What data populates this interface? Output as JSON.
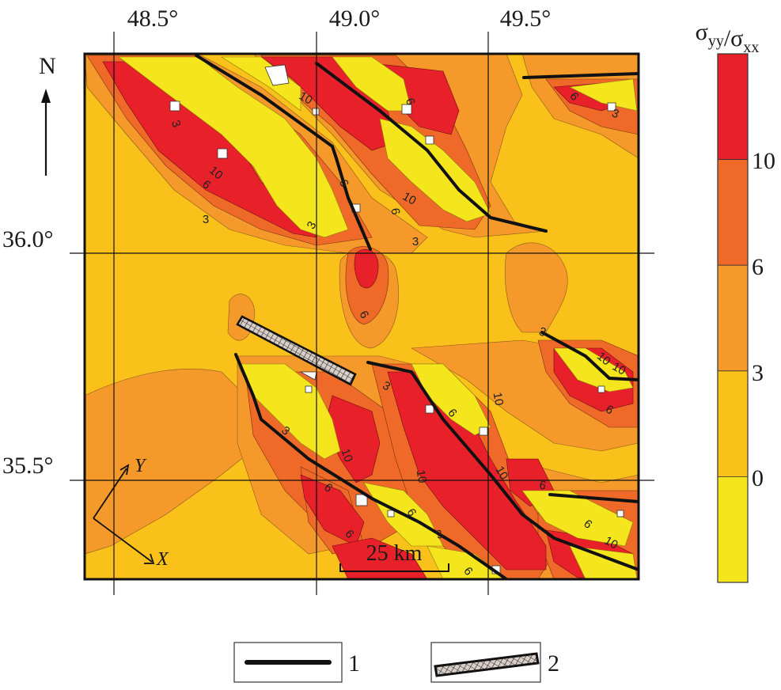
{
  "map": {
    "lon_ticks": [
      "48.5°",
      "49.0°",
      "49.5°"
    ],
    "lat_ticks": [
      "36.0°",
      "35.5°"
    ],
    "north_label": "N",
    "axis_y_label": "Y",
    "axis_x_label": "X",
    "scale_label": "25 km",
    "contour_labels": [
      "3",
      "10",
      "6",
      "10",
      "3",
      "6",
      "6",
      "10",
      "6",
      "3",
      "3",
      "6",
      "10",
      "6",
      "3",
      "6",
      "10",
      "6",
      "3",
      "10",
      "10",
      "6",
      "10",
      "6",
      "3",
      "10",
      "6",
      "6",
      "3",
      "6",
      "3",
      "10",
      "6"
    ]
  },
  "colorbar": {
    "title": "σyy/σxx",
    "ticks": [
      "10",
      "6",
      "3",
      "0"
    ],
    "colors": [
      "#e8202a",
      "#ef6a28",
      "#f5992a",
      "#f9c11a",
      "#f4e51c"
    ]
  },
  "legend": {
    "items": [
      {
        "number": "1",
        "symbol": "fault-line"
      },
      {
        "number": "2",
        "symbol": "hatched-bar"
      }
    ]
  }
}
